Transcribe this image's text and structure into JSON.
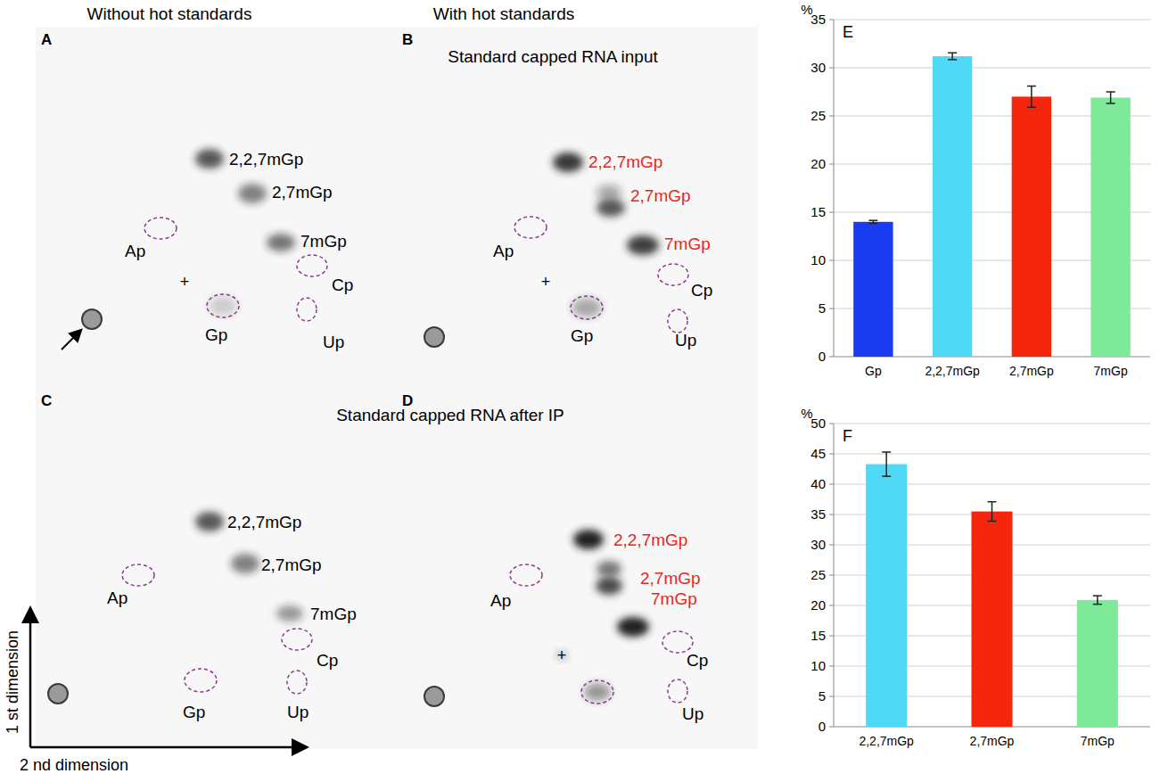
{
  "headers": [
    "Without hot standards",
    "With hot standards"
  ],
  "panel_titles": [
    "Standard capped RNA input",
    "Standard capped RNA after IP"
  ],
  "axes": {
    "first": "1 st dimension",
    "second": "2 nd dimension"
  },
  "panels": [
    {
      "letter": "A",
      "labels": [
        "2,2,7mGp",
        "2,7mGp",
        "7mGp",
        "Ap",
        "Cp",
        "Gp",
        "Up"
      ],
      "label_colors": [
        "#000000",
        "#000000",
        "#000000",
        "#000000",
        "#000000",
        "#000000",
        "#000000"
      ],
      "origin_mark": "+"
    },
    {
      "letter": "B",
      "labels": [
        "2,2,7mGp",
        "2,7mGp",
        "7mGp",
        "Ap",
        "Cp",
        "Gp",
        "Up"
      ],
      "label_colors": [
        "#e8261c",
        "#e8261c",
        "#e8261c",
        "#000000",
        "#000000",
        "#000000",
        "#000000"
      ],
      "origin_mark": "+"
    },
    {
      "letter": "C",
      "labels": [
        "2,2,7mGp",
        "2,7mGp",
        "7mGp",
        "Ap",
        "Cp",
        "Gp",
        "Up"
      ],
      "label_colors": [
        "#000000",
        "#000000",
        "#000000",
        "#000000",
        "#000000",
        "#000000",
        "#000000"
      ]
    },
    {
      "letter": "D",
      "labels": [
        "2,2,7mGp",
        "2,7mGp",
        "7mGp",
        "Ap",
        "Cp",
        "Up"
      ],
      "label_colors": [
        "#e8261c",
        "#e8261c",
        "#e8261c",
        "#000000",
        "#000000",
        "#000000"
      ],
      "origin_mark": "+"
    }
  ],
  "chart_data": [
    {
      "type": "bar",
      "title": "E",
      "y_label": "%",
      "categories": [
        "Gp",
        "2,2,7mGp",
        "2,7mGp",
        "7mGp"
      ],
      "values": [
        14,
        31.2,
        27,
        26.9
      ],
      "errors": [
        0.15,
        0.35,
        1.1,
        0.6
      ],
      "colors": [
        "#1a3cf0",
        "#4fd9f7",
        "#f5260e",
        "#7fe99a"
      ],
      "ylim": [
        0,
        35
      ],
      "yticks": [
        0,
        5,
        10,
        15,
        20,
        25,
        30,
        35
      ],
      "grid": true
    },
    {
      "type": "bar",
      "title": "F",
      "y_label": "%",
      "categories": [
        "2,2,7mGp",
        "2,7mGp",
        "7mGp"
      ],
      "values": [
        43.3,
        35.5,
        20.9
      ],
      "errors": [
        2,
        1.6,
        0.7
      ],
      "colors": [
        "#4fd9f7",
        "#f5260e",
        "#7fe99a"
      ],
      "ylim": [
        0,
        50
      ],
      "yticks": [
        0,
        5,
        10,
        15,
        20,
        25,
        30,
        35,
        40,
        45,
        50
      ],
      "grid": true
    }
  ]
}
